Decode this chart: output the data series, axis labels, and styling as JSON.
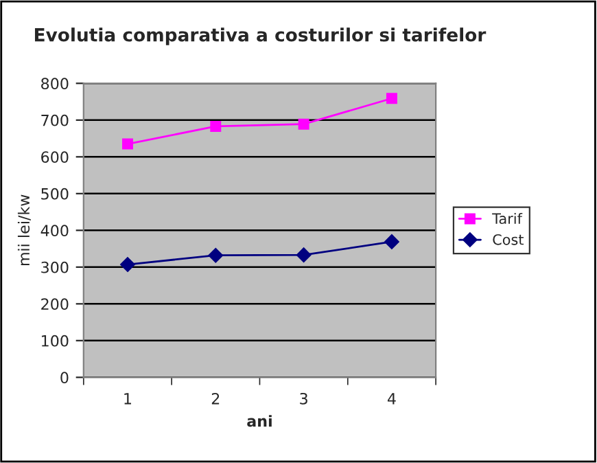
{
  "chart_data": {
    "type": "line",
    "title": "Evolutia comparativa a costurilor si tarifelor",
    "xlabel": "ani",
    "ylabel": "mii lei/kw",
    "categories": [
      "1",
      "2",
      "3",
      "4"
    ],
    "series": [
      {
        "name": "Tarif",
        "color": "#ff00ff",
        "marker": "square",
        "values": [
          635,
          683,
          689,
          759
        ]
      },
      {
        "name": "Cost",
        "color": "#000080",
        "marker": "diamond",
        "values": [
          307,
          332,
          333,
          369
        ]
      }
    ],
    "ylim": [
      0,
      800
    ],
    "yticks": [
      0,
      100,
      200,
      300,
      400,
      500,
      600,
      700,
      800
    ],
    "grid": "y",
    "legend": "right",
    "line_style": "solid"
  }
}
